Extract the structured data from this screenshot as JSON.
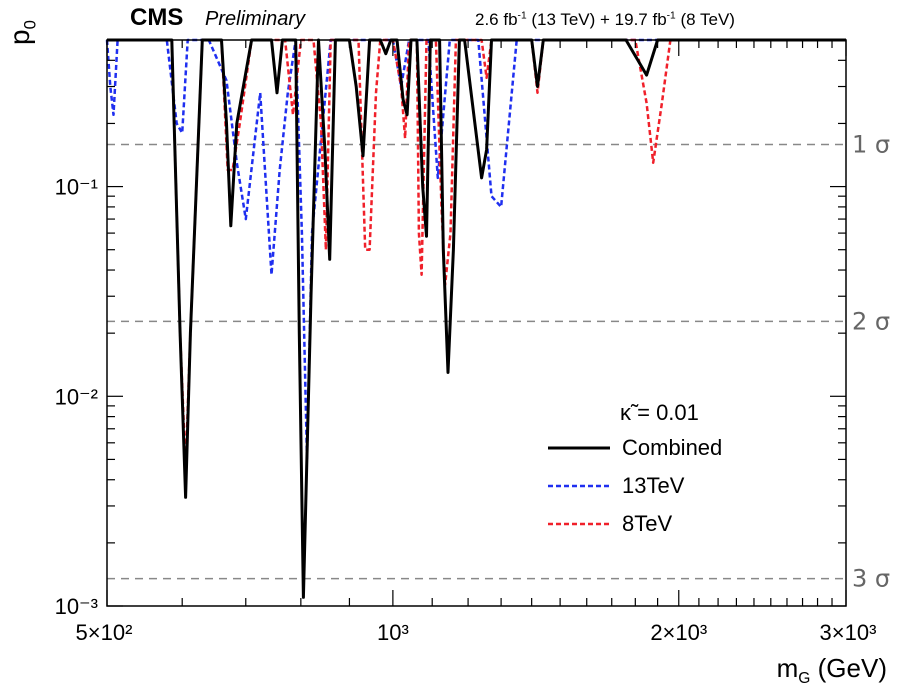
{
  "header": {
    "experiment": "CMS",
    "status": "Preliminary",
    "lumi_13": "2.6 fb",
    "lumi_13_sup": "-1",
    "lumi_13_energy": "(13 TeV) + 19.7 fb",
    "lumi_8_sup": "-1",
    "lumi_8_energy": "(8 TeV)"
  },
  "axes": {
    "ylabel_main": "p",
    "ylabel_sub": "0",
    "xlabel_main": "m",
    "xlabel_sub": "G",
    "xlabel_unit": " (GeV)"
  },
  "colors": {
    "combined": "#000000",
    "tev13": "#1f2ff0",
    "tev8": "#f0202a",
    "sigma_line": "#888888"
  },
  "chart_data": {
    "type": "line",
    "title": "",
    "xlabel": "m_G (GeV)",
    "ylabel": "p_0",
    "xscale": "log",
    "yscale": "log",
    "xlim": [
      500,
      3000
    ],
    "ylim": [
      0.001,
      0.5
    ],
    "x_ticks": [
      {
        "value": 500,
        "label": "5×10²"
      },
      {
        "value": 1000,
        "label": "10³"
      },
      {
        "value": 2000,
        "label": "2×10³"
      },
      {
        "value": 3000,
        "label": "3×10³"
      }
    ],
    "y_ticks": [
      {
        "value": 0.1,
        "label": "10⁻¹"
      },
      {
        "value": 0.01,
        "label": "10⁻²"
      },
      {
        "value": 0.001,
        "label": "10⁻³"
      }
    ],
    "sigma_lines": [
      {
        "value": 0.1587,
        "label": "1 σ"
      },
      {
        "value": 0.02275,
        "label": "2 σ"
      },
      {
        "value": 0.00135,
        "label": "3 σ"
      }
    ],
    "legend": {
      "title": "κ̃ = 0.01",
      "position": "bottom-right",
      "entries": [
        "Combined",
        "13TeV",
        "8TeV"
      ]
    },
    "series": [
      {
        "name": "Combined",
        "style": "solid",
        "x": [
          500,
          585,
          597,
          605,
          612,
          630,
          660,
          668,
          675,
          685,
          710,
          745,
          755,
          765,
          790,
          797,
          805,
          820,
          835,
          848,
          858,
          870,
          900,
          915,
          930,
          945,
          970,
          983,
          995,
          1010,
          1025,
          1035,
          1045,
          1060,
          1075,
          1085,
          1095,
          1120,
          1130,
          1143,
          1158,
          1175,
          1190,
          1240,
          1255,
          1270,
          1400,
          1420,
          1440,
          1760,
          1850,
          1900,
          3000
        ],
        "values": [
          0.5,
          0.5,
          0.02,
          0.0033,
          0.02,
          0.5,
          0.5,
          0.2,
          0.065,
          0.2,
          0.5,
          0.5,
          0.28,
          0.5,
          0.5,
          0.02,
          0.0011,
          0.03,
          0.5,
          0.15,
          0.045,
          0.5,
          0.5,
          0.3,
          0.14,
          0.5,
          0.5,
          0.43,
          0.5,
          0.5,
          0.26,
          0.22,
          0.5,
          0.5,
          0.1,
          0.058,
          0.5,
          0.5,
          0.05,
          0.013,
          0.05,
          0.5,
          0.5,
          0.11,
          0.15,
          0.5,
          0.5,
          0.3,
          0.5,
          0.5,
          0.34,
          0.5,
          0.5
        ]
      },
      {
        "name": "13TeV",
        "style": "dashed",
        "x": [
          500,
          504,
          508,
          513,
          540,
          578,
          592,
          600,
          608,
          622,
          640,
          668,
          685,
          700,
          725,
          745,
          760,
          775,
          790,
          802,
          812,
          822,
          860,
          900,
          1000,
          1020,
          1040,
          1060,
          1090,
          1115,
          1148,
          1230,
          1270,
          1300,
          1350,
          1430,
          1900,
          1960,
          3000
        ],
        "values": [
          0.5,
          0.3,
          0.22,
          0.5,
          0.5,
          0.5,
          0.2,
          0.18,
          0.5,
          0.5,
          0.5,
          0.32,
          0.13,
          0.07,
          0.28,
          0.038,
          0.12,
          0.28,
          0.5,
          0.06,
          0.005,
          0.06,
          0.5,
          0.5,
          0.5,
          0.3,
          0.5,
          0.5,
          0.5,
          0.11,
          0.5,
          0.5,
          0.09,
          0.08,
          0.5,
          0.5,
          0.5,
          0.5,
          0.5
        ]
      },
      {
        "name": "8TeV",
        "style": "dashed",
        "x": [
          500,
          585,
          597,
          605,
          612,
          630,
          660,
          670,
          678,
          690,
          710,
          770,
          785,
          800,
          810,
          825,
          840,
          850,
          860,
          870,
          920,
          935,
          945,
          960,
          970,
          1000,
          1020,
          1030,
          1040,
          1060,
          1065,
          1072,
          1085,
          1110,
          1125,
          1135,
          1150,
          1165,
          1180,
          1240,
          1255,
          1270,
          1400,
          1420,
          1440,
          1800,
          1850,
          1880,
          1920,
          1960,
          3000
        ],
        "values": [
          0.5,
          0.5,
          0.02,
          0.0045,
          0.02,
          0.5,
          0.5,
          0.12,
          0.12,
          0.2,
          0.5,
          0.5,
          0.22,
          0.5,
          0.5,
          0.5,
          0.2,
          0.05,
          0.5,
          0.5,
          0.5,
          0.05,
          0.05,
          0.28,
          0.5,
          0.5,
          0.3,
          0.17,
          0.5,
          0.5,
          0.06,
          0.038,
          0.5,
          0.5,
          0.08,
          0.034,
          0.06,
          0.5,
          0.5,
          0.5,
          0.33,
          0.5,
          0.5,
          0.28,
          0.5,
          0.5,
          0.25,
          0.13,
          0.25,
          0.5,
          0.5
        ]
      }
    ]
  }
}
